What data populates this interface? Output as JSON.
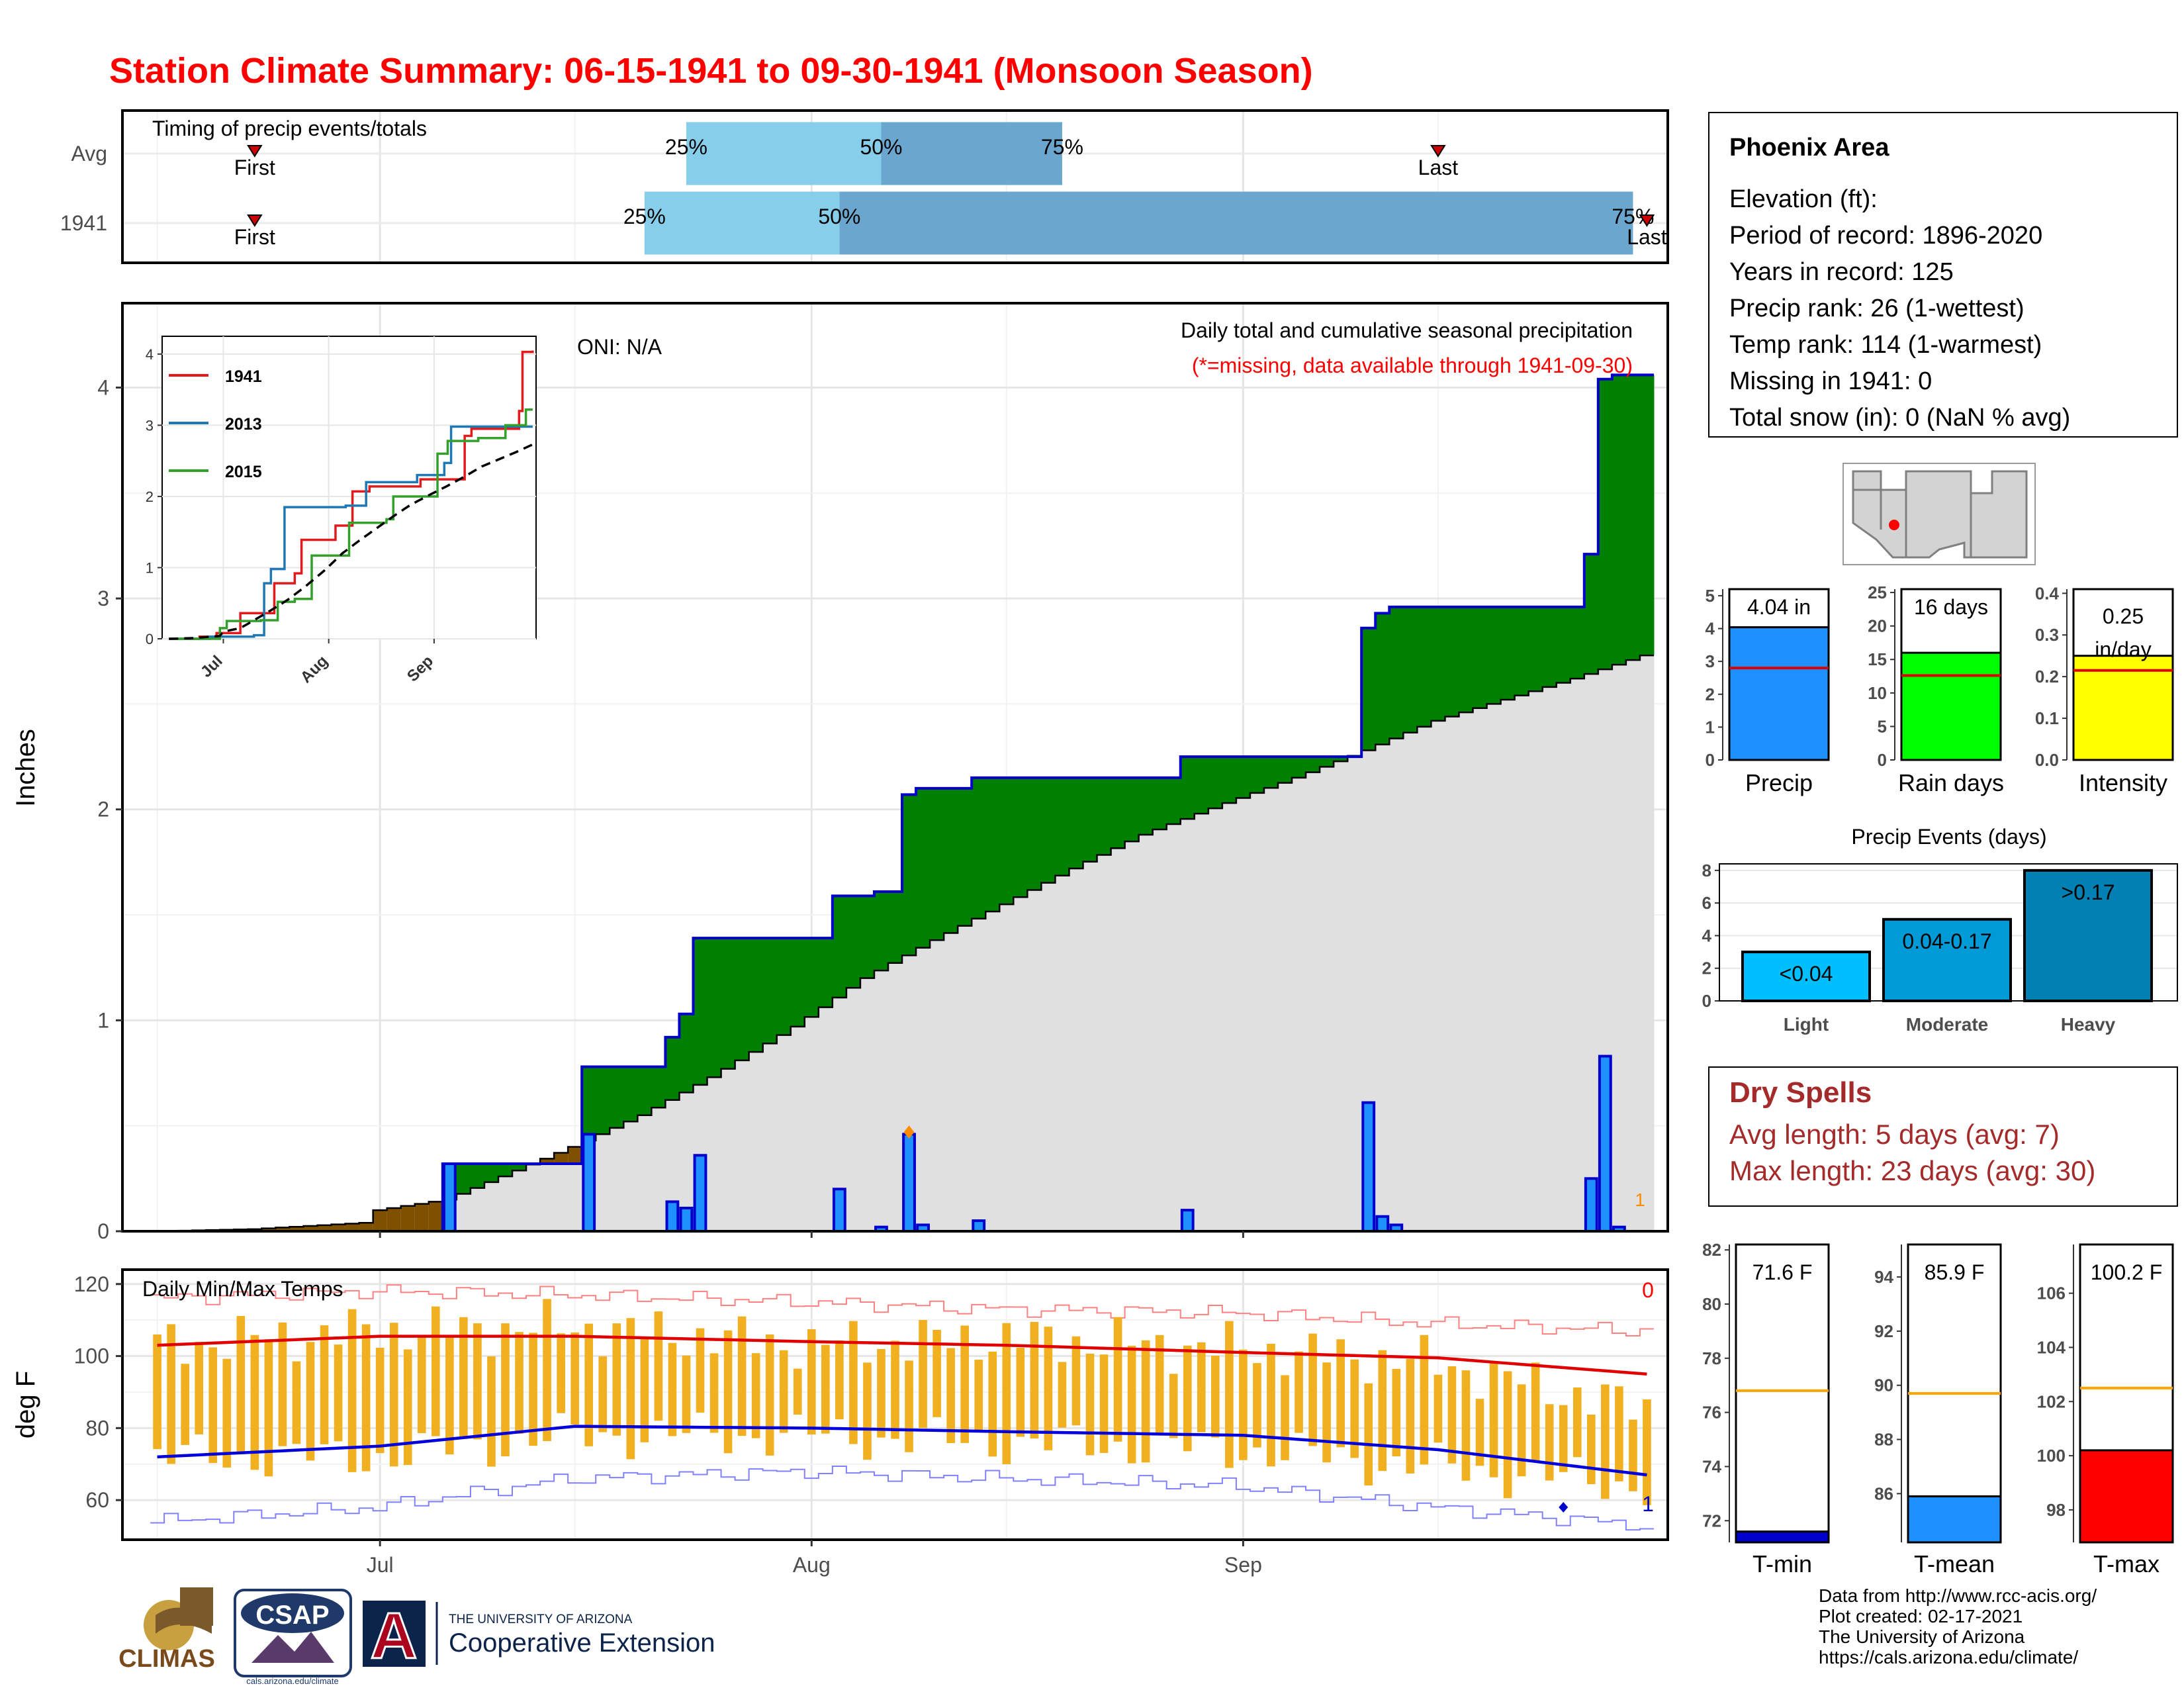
{
  "title": "Station Climate Summary: 06-15-1941 to 09-30-1941 (Monsoon Season)",
  "colors": {
    "title": "#ff0000",
    "cum_green": "#008000",
    "cum_brown": "#7f5000",
    "normal_fill": "#e0e0e0",
    "daily_bar": "#1e90ff",
    "temp_bar": "#f0b020",
    "tmax_line": "#e00000",
    "tmin_line": "#0000dd",
    "timing_light": "#87ceeb",
    "timing_dark": "#6aa6cd",
    "dry_spell": "#a52a2a"
  },
  "timing": {
    "panel_label": "Timing of precip events/totals",
    "rows": [
      {
        "label": "Avg",
        "first_label": "First",
        "last_label": "Last",
        "first": "1941-06-22",
        "last": "1941-09-15",
        "p25": "1941-07-23",
        "p50": "1941-08-06",
        "p75": "1941-08-19"
      },
      {
        "label": "1941",
        "first_label": "First",
        "last_label": "Last",
        "first": "1941-06-22",
        "last": "1941-09-30",
        "p25": "1941-07-20",
        "p50": "1941-08-03",
        "p75": "1941-09-29"
      }
    ],
    "pct_labels": [
      "25%",
      "50%",
      "75%"
    ]
  },
  "precip_panel": {
    "ylabel": "Inches",
    "oni": "ONI: N/A",
    "note1": "Daily total and cumulative seasonal precipitation",
    "note2": "(*=missing, data available through 1941-09-30)",
    "missing_marker": "1",
    "yticks": [
      "0",
      "1",
      "2",
      "3",
      "4"
    ],
    "xticks": [
      "Jul",
      "Aug",
      "Sep"
    ]
  },
  "chart_data": [
    {
      "type": "area",
      "name": "cumulative-precipitation",
      "x_start": "1941-06-15",
      "x_end": "1941-09-30",
      "ylim": [
        0,
        4.4
      ],
      "ylabel": "Inches",
      "daily_precip": [
        {
          "date": "1941-07-06",
          "value": 0.32
        },
        {
          "date": "1941-07-16",
          "value": 0.46
        },
        {
          "date": "1941-07-22",
          "value": 0.14
        },
        {
          "date": "1941-07-23",
          "value": 0.11
        },
        {
          "date": "1941-07-24",
          "value": 0.36
        },
        {
          "date": "1941-08-03",
          "value": 0.2
        },
        {
          "date": "1941-08-06",
          "value": 0.02
        },
        {
          "date": "1941-08-08",
          "value": 0.46
        },
        {
          "date": "1941-08-09",
          "value": 0.03
        },
        {
          "date": "1941-08-13",
          "value": 0.05
        },
        {
          "date": "1941-08-28",
          "value": 0.1
        },
        {
          "date": "1941-09-10",
          "value": 0.61
        },
        {
          "date": "1941-09-11",
          "value": 0.07
        },
        {
          "date": "1941-09-12",
          "value": 0.03
        },
        {
          "date": "1941-09-26",
          "value": 0.25
        },
        {
          "date": "1941-09-27",
          "value": 0.83
        },
        {
          "date": "1941-09-28",
          "value": 0.02
        }
      ],
      "normal_cumulative_anchors": [
        {
          "date": "1941-06-15",
          "value": 0.0
        },
        {
          "date": "1941-06-22",
          "value": 0.01
        },
        {
          "date": "1941-06-30",
          "value": 0.04
        },
        {
          "date": "1941-07-01",
          "value": 0.1
        },
        {
          "date": "1941-07-06",
          "value": 0.15
        },
        {
          "date": "1941-07-10",
          "value": 0.26
        },
        {
          "date": "1941-07-15",
          "value": 0.4
        },
        {
          "date": "1941-07-20",
          "value": 0.55
        },
        {
          "date": "1941-07-25",
          "value": 0.73
        },
        {
          "date": "1941-07-31",
          "value": 0.97
        },
        {
          "date": "1941-08-05",
          "value": 1.2
        },
        {
          "date": "1941-08-10",
          "value": 1.38
        },
        {
          "date": "1941-08-15",
          "value": 1.55
        },
        {
          "date": "1941-08-20",
          "value": 1.72
        },
        {
          "date": "1941-08-25",
          "value": 1.88
        },
        {
          "date": "1941-08-31",
          "value": 2.03
        },
        {
          "date": "1941-09-05",
          "value": 2.15
        },
        {
          "date": "1941-09-10",
          "value": 2.28
        },
        {
          "date": "1941-09-15",
          "value": 2.42
        },
        {
          "date": "1941-09-20",
          "value": 2.52
        },
        {
          "date": "1941-09-25",
          "value": 2.62
        },
        {
          "date": "1941-09-30",
          "value": 2.73
        }
      ]
    },
    {
      "type": "line",
      "name": "inset-cumulative-comparison",
      "ylim": [
        0,
        4
      ],
      "yticks": [
        "0",
        "1",
        "2",
        "3",
        "4"
      ],
      "xticks": [
        "Jul",
        "Aug",
        "Sep"
      ],
      "series": [
        {
          "name": "1941",
          "color": "#e31a1c",
          "points": [
            [
              "1941-06-15",
              0
            ],
            [
              "1941-06-24",
              0.03
            ],
            [
              "1941-06-29",
              0.08
            ],
            [
              "1941-07-06",
              0.36
            ],
            [
              "1941-07-13",
              0.36
            ],
            [
              "1941-07-16",
              0.78
            ],
            [
              "1941-07-22",
              0.92
            ],
            [
              "1941-07-24",
              1.39
            ],
            [
              "1941-08-03",
              1.59
            ],
            [
              "1941-08-08",
              2.07
            ],
            [
              "1941-08-13",
              2.14
            ],
            [
              "1941-08-28",
              2.24
            ],
            [
              "1941-09-10",
              2.85
            ],
            [
              "1941-09-12",
              2.95
            ],
            [
              "1941-09-26",
              3.2
            ],
            [
              "1941-09-27",
              4.03
            ],
            [
              "1941-09-30",
              4.05
            ]
          ]
        },
        {
          "name": "2013",
          "color": "#1f78b4",
          "points": [
            [
              "1941-06-15",
              0
            ],
            [
              "1941-06-27",
              0.03
            ],
            [
              "1941-07-10",
              0.05
            ],
            [
              "1941-07-13",
              0.78
            ],
            [
              "1941-07-15",
              0.98
            ],
            [
              "1941-07-19",
              1.85
            ],
            [
              "1941-08-06",
              1.87
            ],
            [
              "1941-08-12",
              2.2
            ],
            [
              "1941-08-27",
              2.3
            ],
            [
              "1941-09-04",
              2.47
            ],
            [
              "1941-09-06",
              2.98
            ],
            [
              "1941-09-30",
              2.98
            ]
          ]
        },
        {
          "name": "2015",
          "color": "#33a02c",
          "points": [
            [
              "1941-06-15",
              0
            ],
            [
              "1941-06-30",
              0.15
            ],
            [
              "1941-07-02",
              0.25
            ],
            [
              "1941-07-12",
              0.26
            ],
            [
              "1941-07-17",
              0.52
            ],
            [
              "1941-07-22",
              0.56
            ],
            [
              "1941-07-27",
              1.17
            ],
            [
              "1941-08-07",
              1.63
            ],
            [
              "1941-08-18",
              1.68
            ],
            [
              "1941-08-20",
              2.0
            ],
            [
              "1941-09-02",
              2.6
            ],
            [
              "1941-09-05",
              2.78
            ],
            [
              "1941-09-14",
              2.82
            ],
            [
              "1941-09-22",
              3.0
            ],
            [
              "1941-09-28",
              3.22
            ],
            [
              "1941-09-30",
              3.22
            ]
          ]
        }
      ]
    },
    {
      "type": "bar",
      "name": "summary-precip",
      "categories": [
        "Precip"
      ],
      "values": [
        4.04
      ],
      "normal": 2.8,
      "ylim": [
        0,
        5.2
      ],
      "yticks": [
        "0",
        "1",
        "2",
        "3",
        "4",
        "5"
      ],
      "label": "4.04 in",
      "color": "#1e90ff"
    },
    {
      "type": "bar",
      "name": "summary-raindays",
      "categories": [
        "Rain days"
      ],
      "values": [
        16
      ],
      "normal": 12.6,
      "ylim": [
        0,
        25.5
      ],
      "yticks": [
        "0",
        "5",
        "10",
        "15",
        "20",
        "25"
      ],
      "label": "16 days",
      "color": "#00ff00"
    },
    {
      "type": "bar",
      "name": "summary-intensity",
      "categories": [
        "Intensity"
      ],
      "values": [
        0.25
      ],
      "normal": 0.215,
      "ylim": [
        0,
        0.41
      ],
      "yticks": [
        "0.0",
        "0.1",
        "0.2",
        "0.3",
        "0.4"
      ],
      "label": "0.25 in/day",
      "color": "#ffff00"
    },
    {
      "type": "bar",
      "name": "precip-events",
      "title": "Precip Events (days)",
      "categories": [
        "Light",
        "Moderate",
        "Heavy"
      ],
      "values": [
        3,
        5,
        8
      ],
      "labels": [
        "<0.04",
        "0.04-0.17",
        ">0.17"
      ],
      "colors": [
        "#00bfff",
        "#009ad6",
        "#0080b3"
      ],
      "ylim": [
        0,
        8.4
      ],
      "yticks": [
        "0",
        "2",
        "4",
        "6",
        "8"
      ]
    },
    {
      "type": "line",
      "name": "daily-temps",
      "title": "Daily Min/Max Temps",
      "ylabel": "deg F",
      "ylim": [
        49,
        124
      ],
      "yticks": [
        "60",
        "80",
        "100",
        "120"
      ],
      "xticks": [
        "Jul",
        "Aug",
        "Sep"
      ],
      "missing_max": "0",
      "missing_min": "1",
      "daily_range_anchors": [
        {
          "date": "1941-06-15",
          "tmax": 103,
          "tmin": 72
        },
        {
          "date": "1941-07-01",
          "tmax": 107,
          "tmin": 72
        },
        {
          "date": "1941-07-15",
          "tmax": 108,
          "tmin": 78
        },
        {
          "date": "1941-08-01",
          "tmax": 103,
          "tmin": 78
        },
        {
          "date": "1941-08-15",
          "tmax": 105,
          "tmin": 76
        },
        {
          "date": "1941-09-01",
          "tmax": 102,
          "tmin": 74
        },
        {
          "date": "1941-09-15",
          "tmax": 98,
          "tmin": 69
        },
        {
          "date": "1941-09-30",
          "tmax": 85,
          "tmin": 64
        }
      ],
      "normal_max_anchors": [
        [
          "1941-06-15",
          103
        ],
        [
          "1941-07-01",
          105.5
        ],
        [
          "1941-07-15",
          105.5
        ],
        [
          "1941-08-01",
          104
        ],
        [
          "1941-08-15",
          103
        ],
        [
          "1941-09-01",
          101
        ],
        [
          "1941-09-15",
          99.5
        ],
        [
          "1941-09-30",
          95
        ]
      ],
      "normal_min_anchors": [
        [
          "1941-06-15",
          72
        ],
        [
          "1941-07-01",
          75
        ],
        [
          "1941-07-15",
          80.5
        ],
        [
          "1941-08-01",
          80
        ],
        [
          "1941-08-15",
          79
        ],
        [
          "1941-09-01",
          78
        ],
        [
          "1941-09-15",
          74
        ],
        [
          "1941-09-30",
          67
        ]
      ],
      "record_max_anchors": [
        [
          "1941-06-15",
          116
        ],
        [
          "1941-07-01",
          118
        ],
        [
          "1941-07-15",
          117
        ],
        [
          "1941-08-01",
          115
        ],
        [
          "1941-08-15",
          113
        ],
        [
          "1941-09-01",
          112
        ],
        [
          "1941-09-15",
          109
        ],
        [
          "1941-09-30",
          107
        ]
      ],
      "record_min_anchors": [
        [
          "1941-06-15",
          54
        ],
        [
          "1941-07-01",
          58
        ],
        [
          "1941-07-15",
          66
        ],
        [
          "1941-08-01",
          68
        ],
        [
          "1941-08-15",
          66
        ],
        [
          "1941-09-01",
          64
        ],
        [
          "1941-09-15",
          58
        ],
        [
          "1941-09-30",
          53
        ]
      ]
    },
    {
      "type": "bar",
      "name": "summary-temps",
      "bars": [
        {
          "label": "T-min",
          "value": 71.6,
          "text": "71.6 F",
          "normal": 76.8,
          "ylim": [
            71.2,
            82.2
          ],
          "yticks": [
            "72",
            "74",
            "76",
            "78",
            "80",
            "82"
          ],
          "color": "#0000cd"
        },
        {
          "label": "T-mean",
          "value": 85.9,
          "text": "85.9 F",
          "normal": 89.7,
          "ylim": [
            84.2,
            95.2
          ],
          "yticks": [
            "86",
            "88",
            "90",
            "92",
            "94"
          ],
          "color": "#1e90ff"
        },
        {
          "label": "T-max",
          "value": 100.2,
          "text": "100.2 F",
          "normal": 102.5,
          "ylim": [
            96.8,
            107.8
          ],
          "yticks": [
            "98",
            "100",
            "102",
            "104",
            "106"
          ],
          "color": "#ff0000"
        }
      ]
    }
  ],
  "station": {
    "name": "Phoenix Area",
    "lines": [
      "Elevation (ft):",
      "Period of record: 1896-2020",
      "Years in record: 125",
      "Precip rank: 26 (1-wettest)",
      "Temp rank: 114 (1-warmest)",
      "Missing in 1941: 0",
      "Total snow (in): 0 (NaN % avg)"
    ]
  },
  "summary_labels": {
    "precip": "Precip",
    "raindays": "Rain days",
    "intensity": "Intensity"
  },
  "dry_spells": {
    "title": "Dry Spells",
    "avg": "Avg length: 5 days (avg: 7)",
    "max": "Max length: 23 days (avg: 30)"
  },
  "footer": {
    "lines": [
      "Data from http://www.rcc-acis.org/",
      "Plot created: 02-17-2021",
      "The University of Arizona",
      "https://cals.arizona.edu/climate/"
    ],
    "logos": {
      "climas": "CLIMAS",
      "csap": "CSAP",
      "csap_url": "cals.arizona.edu/climate",
      "ua_letter": "A",
      "ua_top": "THE UNIVERSITY OF ARIZONA",
      "ua_bottom": "Cooperative Extension"
    }
  }
}
